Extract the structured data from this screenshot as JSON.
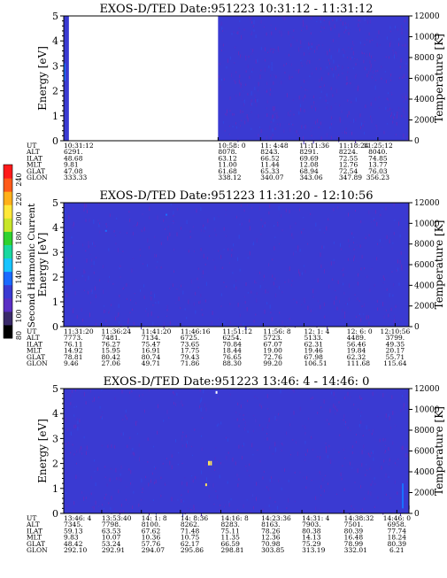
{
  "colors": {
    "background": "#3a3ad2",
    "noise": "#5a2fc4",
    "speck_hot": "#ffe35a",
    "speck_cool": "#1a70ff",
    "gap": "#ffffff"
  },
  "colorbar": {
    "title": "Second Harmonic Current",
    "ticks": [
      "80",
      "100",
      "120",
      "140",
      "160",
      "180",
      "200",
      "220",
      "240"
    ],
    "colors": [
      "#000000",
      "#3a2a6a",
      "#5a2fc4",
      "#3a3ad2",
      "#1a6aff",
      "#18c4ff",
      "#19d8a0",
      "#2fd22f",
      "#c8e62a",
      "#ffe83a",
      "#ffb01a",
      "#ff5a1a",
      "#ff1a1a"
    ]
  },
  "chart_data": [
    {
      "type": "heatmap",
      "title": "EXOS-D/TED   Date:951223  10:31:12 - 11:31:12",
      "ylabel": "Energy [eV]",
      "y2label": "Temperature [K]",
      "ylim": [
        0,
        5
      ],
      "y2lim": [
        0,
        12000
      ],
      "yticks": [
        "0",
        "1",
        "2",
        "3",
        "4",
        "5"
      ],
      "y2ticks": [
        "0",
        "2000",
        "4000",
        "6000",
        "8000",
        "10000",
        "12000"
      ],
      "data_gap": {
        "start": "10:31:12",
        "end": "10:58:0"
      },
      "eph_labels": [
        "UT",
        "ALT",
        "ILAT",
        "MLT",
        "GLAT",
        "GLON"
      ],
      "eph_columns": [
        {
          "frac": 0.0,
          "values": [
            "10:31:12",
            "6291.",
            "48.68",
            "9.81",
            "47.08",
            "333.33"
          ]
        },
        {
          "frac": 0.447,
          "values": [
            "10:58: 0",
            "8078.",
            "63.12",
            "11.00",
            "61.68",
            "338.12"
          ]
        },
        {
          "frac": 0.57,
          "values": [
            "11: 4:48",
            "8243.",
            "66.52",
            "11.44",
            "65.33",
            "340.07"
          ]
        },
        {
          "frac": 0.683,
          "values": [
            "11:11:36",
            "8291.",
            "69.69",
            "12.08",
            "68.94",
            "343.06"
          ]
        },
        {
          "frac": 0.797,
          "values": [
            "11:18:24",
            "8224.",
            "72.55",
            "12.76",
            "72.54",
            "347.89"
          ]
        },
        {
          "frac": 0.91,
          "values": [
            "11:25:12",
            "8040.",
            "74.85",
            "13.77",
            "76.03",
            "356.23"
          ]
        }
      ]
    },
    {
      "type": "heatmap",
      "title": "EXOS-D/TED   Date:951223  11:31:20 - 12:10:56",
      "ylabel": "Energy [eV]",
      "y2label": "Temperature [K]",
      "ylim": [
        0,
        5
      ],
      "y2lim": [
        0,
        12000
      ],
      "yticks": [
        "0",
        "1",
        "2",
        "3",
        "4",
        "5"
      ],
      "y2ticks": [
        "0",
        "2000",
        "4000",
        "6000",
        "8000",
        "10000",
        "12000"
      ],
      "eph_labels": [
        "UT",
        "ALT",
        "ILAT",
        "MLT",
        "GLAT",
        "GLON"
      ],
      "eph_columns": [
        {
          "frac": 0.0,
          "values": [
            "11:31:20",
            "7773.",
            "76.11",
            "14.92",
            "78.81",
            "9.46"
          ]
        },
        {
          "frac": 0.109,
          "values": [
            "11:36:24",
            "7481.",
            "76.27",
            "15.95",
            "80.42",
            "27.06"
          ]
        },
        {
          "frac": 0.225,
          "values": [
            "11:41:20",
            "7134.",
            "75.47",
            "16.91",
            "80.74",
            "49.71"
          ]
        },
        {
          "frac": 0.338,
          "values": [
            "11:46:16",
            "6725.",
            "73.65",
            "17.75",
            "79.43",
            "71.86"
          ]
        },
        {
          "frac": 0.46,
          "values": [
            "11:51:12",
            "6254.",
            "70.84",
            "18.44",
            "76.65",
            "88.30"
          ]
        },
        {
          "frac": 0.578,
          "values": [
            "11:56: 8",
            "5723.",
            "67.07",
            "19.00",
            "72.76",
            "99.20"
          ]
        },
        {
          "frac": 0.696,
          "values": [
            "12: 1: 4",
            "5133.",
            "62.31",
            "19.46",
            "67.98",
            "106.51"
          ]
        },
        {
          "frac": 0.82,
          "values": [
            "12: 6: 0",
            "4489.",
            "56.46",
            "19.84",
            "62.32",
            "111.68"
          ]
        },
        {
          "frac": 0.96,
          "values": [
            "12:10:56",
            "3799.",
            "49.35",
            "20.17",
            "55.71",
            "115.64"
          ]
        }
      ]
    },
    {
      "type": "heatmap",
      "title": "EXOS-D/TED   Date:951223  13:46: 4 - 14:46: 0",
      "ylabel": "Energy [eV]",
      "y2label": "Temperature [K]",
      "ylim": [
        0,
        5
      ],
      "y2lim": [
        0,
        12000
      ],
      "yticks": [
        "0",
        "1",
        "2",
        "3",
        "4",
        "5"
      ],
      "y2ticks": [
        "0",
        "2000",
        "4000",
        "6000",
        "8000",
        "10000",
        "12000"
      ],
      "eph_labels": [
        "UT",
        "ALT",
        "ILAT",
        "MLT",
        "GLAT",
        "GLON"
      ],
      "eph_columns": [
        {
          "frac": 0.0,
          "values": [
            "13:46: 4",
            "7345.",
            "59.13",
            "9.83",
            "48.42",
            "292.10"
          ]
        },
        {
          "frac": 0.11,
          "values": [
            "13:53:40",
            "7798.",
            "63.53",
            "10.07",
            "53.24",
            "292.91"
          ]
        },
        {
          "frac": 0.225,
          "values": [
            "14: 1: 8",
            "8100.",
            "67.62",
            "10.36",
            "57.76",
            "294.07"
          ]
        },
        {
          "frac": 0.338,
          "values": [
            "14: 8:36",
            "8262.",
            "71.48",
            "10.75",
            "62.17",
            "295.86"
          ]
        },
        {
          "frac": 0.455,
          "values": [
            "14:16: 8",
            "8283.",
            "75.11",
            "11.35",
            "66.59",
            "298.81"
          ]
        },
        {
          "frac": 0.572,
          "values": [
            "14:23:36",
            "8163.",
            "78.26",
            "12.36",
            "70.98",
            "303.85"
          ]
        },
        {
          "frac": 0.69,
          "values": [
            "14:31: 4",
            "7903.",
            "80.38",
            "14.13",
            "75.29",
            "313.19"
          ]
        },
        {
          "frac": 0.812,
          "values": [
            "14:38:32",
            "7501.",
            "80.39",
            "16.48",
            "78.99",
            "332.01"
          ]
        },
        {
          "frac": 0.965,
          "values": [
            "14:46: 0",
            "6958.",
            "77.74",
            "18.24",
            "80.39",
            "6.21"
          ]
        }
      ]
    }
  ]
}
